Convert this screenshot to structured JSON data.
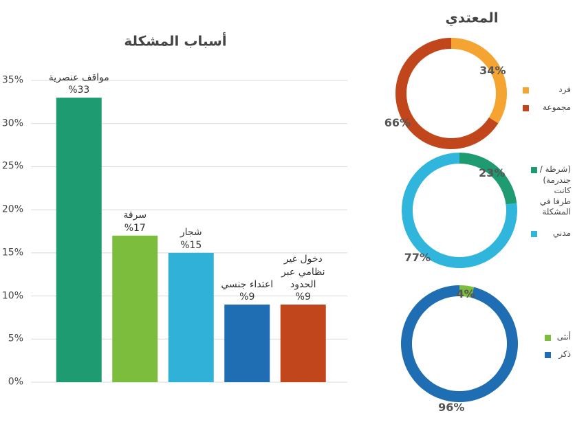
{
  "chart_data": [
    {
      "type": "bar",
      "title": "أسباب المشكلة",
      "categories": [
        "مواقف عنصرية",
        "سرقة",
        "شجار",
        "اعتداء جنسي",
        "دخول غير نظامي عبر الحدود"
      ],
      "values": [
        33,
        17,
        15,
        9,
        9
      ],
      "value_labels": [
        "%33",
        "%17",
        "%15",
        "%9",
        "%9"
      ],
      "colors": [
        "#1e9b70",
        "#7dbd3d",
        "#30b1d8",
        "#1f6db2",
        "#c2461b"
      ],
      "ylim": [
        0,
        35
      ],
      "yticks": [
        {
          "value": 0,
          "label": "0%"
        },
        {
          "value": 5,
          "label": "5%"
        },
        {
          "value": 10,
          "label": "10%"
        },
        {
          "value": 15,
          "label": "15%"
        },
        {
          "value": 20,
          "label": "20%"
        },
        {
          "value": 25,
          "label": "25%"
        },
        {
          "value": 30,
          "label": "30%"
        },
        {
          "value": 35,
          "label": "35%"
        }
      ],
      "grid": true
    },
    {
      "type": "donut",
      "title": "المعتدي",
      "categories": [
        "فرد",
        "مجموعة"
      ],
      "values": [
        34,
        66
      ],
      "value_labels": [
        "34%",
        "66%"
      ],
      "colors": [
        "#f5a431",
        "#c2461b"
      ]
    },
    {
      "type": "donut",
      "categories": [
        "(شرطة / جندرمة) كانت طرفا في المشكلة",
        "مدني"
      ],
      "values": [
        23,
        77
      ],
      "value_labels": [
        "23%",
        "77%"
      ],
      "colors": [
        "#1e9b70",
        "#30b6dc"
      ]
    },
    {
      "type": "donut",
      "categories": [
        "أنثى",
        "ذكر"
      ],
      "values": [
        4,
        96
      ],
      "value_labels": [
        "4%",
        "96%"
      ],
      "colors": [
        "#7dbd3d",
        "#1f6db2"
      ]
    }
  ]
}
